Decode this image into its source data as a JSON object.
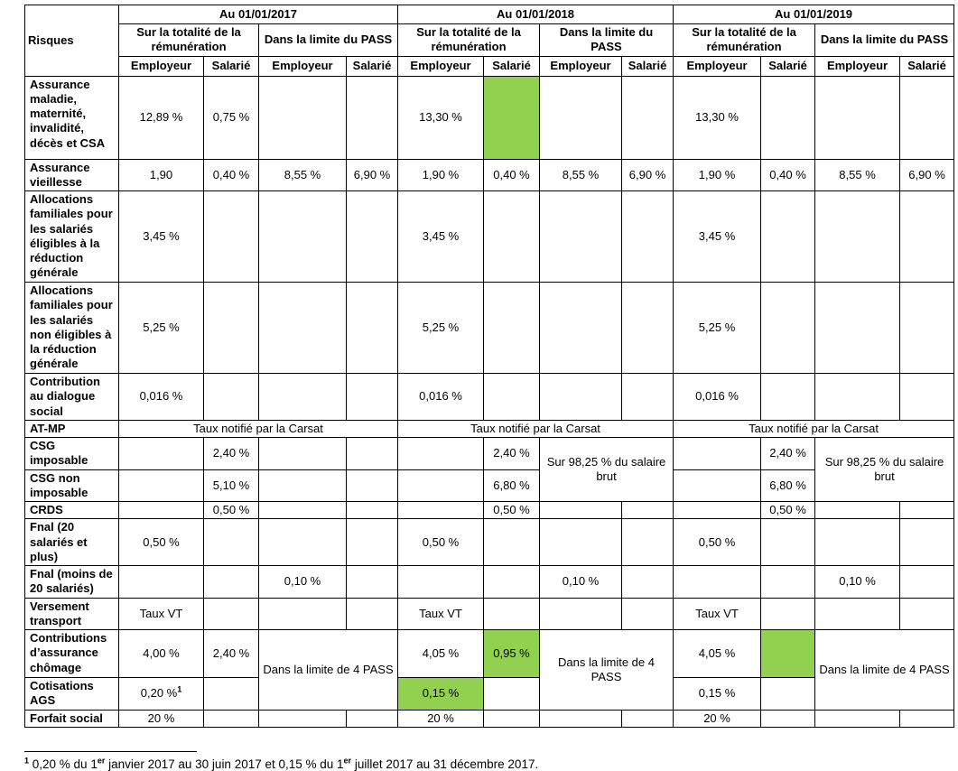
{
  "colors": {
    "highlight": "#92D050",
    "border": "#000000",
    "text": "#000000"
  },
  "table": {
    "corner_label": "Risques",
    "years": [
      "Au 01/01/2017",
      "Au 01/01/2018",
      "Au 01/01/2019"
    ],
    "scope_labels": [
      "Sur la totalité de la rémunération",
      "Dans la limite du PASS"
    ],
    "party_labels": [
      "Employeur",
      "Salarié"
    ],
    "rows": [
      {
        "label": "Assurance maladie, maternité, invalidité, décès et CSA",
        "cells": [
          {
            "t": "12,89 %"
          },
          {
            "t": "0,75 %"
          },
          {},
          {},
          {
            "t": "13,30 %"
          },
          {
            "hl": true
          },
          {},
          {},
          {
            "t": "13,30 %"
          },
          {},
          {},
          {}
        ]
      },
      {
        "label": "Assurance vieillesse",
        "cells": [
          {
            "t": "1,90"
          },
          {
            "t": "0,40 %"
          },
          {
            "t": "8,55 %"
          },
          {
            "t": "6,90 %"
          },
          {
            "t": "1,90 %"
          },
          {
            "t": "0,40 %"
          },
          {
            "t": "8,55 %"
          },
          {
            "t": "6,90 %"
          },
          {
            "t": "1,90 %"
          },
          {
            "t": "0,40 %"
          },
          {
            "t": "8,55 %"
          },
          {
            "t": "6,90 %"
          }
        ]
      },
      {
        "label": "Allocations familiales pour les salariés éligibles à la réduction générale",
        "cells": [
          {
            "t": "3,45 %"
          },
          {},
          {},
          {},
          {
            "t": "3,45 %"
          },
          {},
          {},
          {},
          {
            "t": "3,45 %"
          },
          {},
          {},
          {}
        ]
      },
      {
        "label": "Allocations familiales pour les salariés non éligibles à la réduction générale",
        "cells": [
          {
            "t": "5,25 %"
          },
          {},
          {},
          {},
          {
            "t": "5,25 %"
          },
          {},
          {},
          {},
          {
            "t": "5,25 %"
          },
          {},
          {},
          {}
        ]
      },
      {
        "label": "Contribution au dialogue social",
        "cells": [
          {
            "t": "0,016 %"
          },
          {},
          {},
          {},
          {
            "t": "0,016 %"
          },
          {},
          {},
          {},
          {
            "t": "0,016 %"
          },
          {},
          {},
          {}
        ]
      },
      {
        "label": "AT-MP",
        "cells": [
          {
            "t": "Taux notifié par la Carsat",
            "cs": 4
          },
          {
            "t": "Taux notifié par la Carsat",
            "cs": 4
          },
          {
            "t": "Taux notifié par la Carsat",
            "cs": 4
          }
        ]
      },
      {
        "label": "CSG imposable",
        "cells": [
          {},
          {
            "t": "2,40 %"
          },
          {},
          {},
          {},
          {
            "t": "2,40 %"
          },
          {
            "t": "Sur 98,25 % du salaire brut",
            "cs": 2,
            "rs": 2,
            "note": true
          },
          {},
          {
            "t": "2,40 %"
          },
          {
            "t": "Sur 98,25 % du salaire brut",
            "cs": 2,
            "rs": 2,
            "note": true
          }
        ]
      },
      {
        "label": "CSG non imposable",
        "cells": [
          {},
          {
            "t": "5,10 %"
          },
          {},
          {},
          {},
          {
            "t": "6,80 %"
          },
          {},
          {
            "t": "6,80 %"
          }
        ]
      },
      {
        "label": "CRDS",
        "cells": [
          {},
          {
            "t": "0,50 %"
          },
          {},
          {},
          {},
          {
            "t": "0,50 %"
          },
          {},
          {},
          {},
          {
            "t": "0,50 %"
          },
          {},
          {}
        ]
      },
      {
        "label": "Fnal (20 salariés et plus)",
        "cells": [
          {
            "t": "0,50 %"
          },
          {},
          {},
          {},
          {
            "t": "0,50 %"
          },
          {},
          {},
          {},
          {
            "t": "0,50 %"
          },
          {},
          {},
          {}
        ]
      },
      {
        "label": "Fnal (moins de 20 salariés)",
        "cells": [
          {},
          {},
          {
            "t": "0,10 %"
          },
          {},
          {},
          {},
          {
            "t": "0,10 %"
          },
          {},
          {},
          {},
          {
            "t": "0,10 %"
          },
          {}
        ]
      },
      {
        "label": "Versement transport",
        "cells": [
          {
            "t": "Taux VT"
          },
          {},
          {},
          {},
          {
            "t": "Taux VT"
          },
          {},
          {},
          {},
          {
            "t": "Taux VT"
          },
          {},
          {},
          {}
        ]
      },
      {
        "label": "Contributions d’assurance chômage",
        "cells": [
          {
            "t": "4,00 %"
          },
          {
            "t": "2,40 %"
          },
          {
            "t": "Dans la limite de 4 PASS",
            "cs": 2,
            "rs": 2,
            "note": true
          },
          {
            "t": "4,05 %"
          },
          {
            "t": "0,95 %",
            "hl": true
          },
          {
            "t": "Dans la limite de 4 PASS",
            "cs": 2,
            "rs": 2,
            "note": true
          },
          {
            "t": "4,05 %"
          },
          {
            "hl": true
          },
          {
            "t": "Dans la limite de 4 PASS",
            "cs": 2,
            "rs": 2,
            "note": true
          }
        ]
      },
      {
        "label": "Cotisations AGS",
        "cells": [
          {
            "t": "0,20 %",
            "sup": "1"
          },
          {},
          {
            "t": "0,15 %",
            "hl": true
          },
          {},
          {
            "t": "0,15 %"
          },
          {}
        ]
      },
      {
        "label": "Forfait social",
        "cells": [
          {
            "t": "20 %"
          },
          {},
          {},
          {},
          {
            "t": "20 %"
          },
          {},
          {},
          {},
          {
            "t": "20 %"
          },
          {},
          {},
          {}
        ]
      }
    ]
  },
  "footnote": {
    "segments": [
      {
        "sup": "1"
      },
      {
        "text": " 0,20 % du 1"
      },
      {
        "sup": "er"
      },
      {
        "text": " janvier 2017 au 30 juin 2017 et 0,15 % du 1"
      },
      {
        "sup": "er"
      },
      {
        "text": " juillet 2017 au 31 décembre 2017."
      }
    ]
  }
}
